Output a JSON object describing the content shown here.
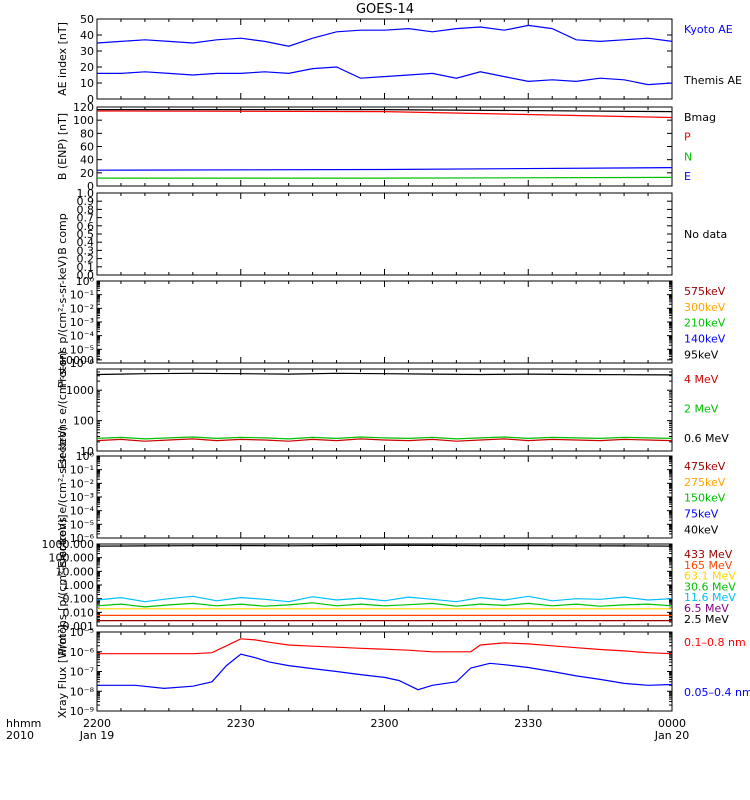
{
  "title": "GOES-14",
  "footer": {
    "corner_top": "hhmm",
    "corner_bottom": "2010",
    "ticks": [
      {
        "t": 0,
        "time": "2200",
        "date": "Jan 19"
      },
      {
        "t": 30,
        "time": "2230",
        "date": ""
      },
      {
        "t": 60,
        "time": "2300",
        "date": ""
      },
      {
        "t": 90,
        "time": "2330",
        "date": ""
      },
      {
        "t": 120,
        "time": "0000",
        "date": "Jan 20"
      }
    ]
  },
  "chart_data": [
    {
      "type": "line",
      "ylabel": "AE index [nT]",
      "ylim": [
        0,
        50
      ],
      "scale": "linear",
      "yticks": [
        "0",
        "10",
        "20",
        "30",
        "40",
        "50"
      ],
      "ytick_values": [
        0,
        10,
        20,
        30,
        40,
        50
      ],
      "series": [
        {
          "name": "Kyoto AE",
          "color": "#0000ff",
          "label_color": "#0000ff",
          "x": [
            0,
            5,
            10,
            15,
            20,
            25,
            30,
            35,
            40,
            45,
            50,
            55,
            60,
            65,
            70,
            75,
            80,
            85,
            90,
            95,
            100,
            105,
            110,
            115,
            120
          ],
          "y": [
            35,
            36,
            37,
            36,
            35,
            37,
            38,
            36,
            33,
            38,
            42,
            43,
            43,
            44,
            42,
            44,
            45,
            43,
            46,
            44,
            37,
            36,
            37,
            38,
            36
          ]
        },
        {
          "name": "Themis AE",
          "color": "#0000ff",
          "label_color": "#000000",
          "x": [
            0,
            5,
            10,
            15,
            20,
            25,
            30,
            35,
            40,
            45,
            50,
            55,
            60,
            65,
            70,
            75,
            80,
            85,
            90,
            95,
            100,
            105,
            110,
            115,
            120
          ],
          "y": [
            16,
            16,
            17,
            16,
            15,
            16,
            16,
            17,
            16,
            19,
            20,
            13,
            14,
            15,
            16,
            13,
            17,
            14,
            11,
            12,
            11,
            13,
            12,
            9,
            10
          ]
        }
      ]
    },
    {
      "type": "line",
      "ylabel": "B (ENP) [nT]",
      "ylim": [
        0,
        120
      ],
      "scale": "linear",
      "yticks": [
        "0",
        "20",
        "40",
        "60",
        "80",
        "100",
        "120"
      ],
      "ytick_values": [
        0,
        20,
        40,
        60,
        80,
        100,
        120
      ],
      "series": [
        {
          "name": "Bmag",
          "color": "#000000",
          "label_color": "#000000",
          "x": [
            0,
            60,
            120
          ],
          "y": [
            116,
            116,
            113
          ]
        },
        {
          "name": "P",
          "color": "#ff0000",
          "label_color": "#ff0000",
          "x": [
            0,
            60,
            120
          ],
          "y": [
            114,
            113,
            104
          ]
        },
        {
          "name": "N",
          "color": "#00c000",
          "label_color": "#00c000",
          "x": [
            0,
            60,
            120
          ],
          "y": [
            12,
            12,
            13
          ]
        },
        {
          "name": "E",
          "color": "#0000ff",
          "label_color": "#0000ff",
          "x": [
            0,
            60,
            120
          ],
          "y": [
            24,
            25,
            28
          ]
        }
      ]
    },
    {
      "type": "line",
      "ylabel": "B comp",
      "ylim": [
        0,
        1
      ],
      "scale": "linear",
      "yticks": [
        "0.0",
        "0.1",
        "0.2",
        "0.3",
        "0.4",
        "0.5",
        "0.6",
        "0.7",
        "0.8",
        "0.9",
        "1.0"
      ],
      "ytick_values": [
        0,
        0.1,
        0.2,
        0.3,
        0.4,
        0.5,
        0.6,
        0.7,
        0.8,
        0.9,
        1.0
      ],
      "series": [],
      "labels": [
        {
          "text": "No data",
          "color": "#000000"
        }
      ]
    },
    {
      "type": "line",
      "ylabel": "Protons p/(cm²-s-sr-keV)",
      "ylim": [
        1e-06,
        1
      ],
      "scale": "log",
      "yticks": [
        "10⁰",
        "10⁻¹",
        "10⁻²",
        "10⁻³",
        "10⁻⁴",
        "10⁻⁵",
        "10⁻⁶"
      ],
      "ytick_values": [
        1,
        0.1,
        0.01,
        0.001,
        0.0001,
        1e-05,
        1e-06
      ],
      "series": [
        {
          "name": "575keV",
          "color": "#990000",
          "label_color": "#990000",
          "x": [],
          "y": []
        },
        {
          "name": "300keV",
          "color": "#ffa500",
          "label_color": "#ffa500",
          "x": [],
          "y": []
        },
        {
          "name": "210keV",
          "color": "#00c000",
          "label_color": "#00c000",
          "x": [],
          "y": []
        },
        {
          "name": "140keV",
          "color": "#0000ff",
          "label_color": "#0000ff",
          "x": [],
          "y": []
        },
        {
          "name": "95keV",
          "color": "#000000",
          "label_color": "#000000",
          "x": [],
          "y": []
        }
      ]
    },
    {
      "type": "line",
      "ylabel": "Electrons e/(cm²-s-sr)",
      "ylim": [
        10,
        5000
      ],
      "scale": "log",
      "yticks": [
        "10",
        "100",
        "1000",
        "10000"
      ],
      "ytick_values": [
        10,
        100,
        1000,
        10000
      ],
      "series": [
        {
          "name": "4 MeV",
          "color": "#cc0000",
          "label_color": "#cc0000",
          "x": [
            0,
            5,
            10,
            15,
            20,
            25,
            30,
            35,
            40,
            45,
            50,
            55,
            60,
            65,
            70,
            75,
            80,
            85,
            90,
            95,
            100,
            105,
            110,
            115,
            120
          ],
          "y": [
            22,
            24,
            21,
            23,
            25,
            22,
            24,
            23,
            21,
            24,
            22,
            25,
            23,
            22,
            24,
            21,
            23,
            25,
            22,
            24,
            23,
            22,
            24,
            23,
            22
          ]
        },
        {
          "name": "2 MeV",
          "color": "#00c000",
          "label_color": "#00c000",
          "x": [
            0,
            5,
            10,
            15,
            20,
            25,
            30,
            35,
            40,
            45,
            50,
            55,
            60,
            65,
            70,
            75,
            80,
            85,
            90,
            95,
            100,
            105,
            110,
            115,
            120
          ],
          "y": [
            26,
            28,
            25,
            27,
            29,
            26,
            28,
            27,
            25,
            28,
            26,
            29,
            27,
            26,
            28,
            25,
            27,
            29,
            26,
            28,
            27,
            26,
            28,
            27,
            26
          ]
        },
        {
          "name": "0.6 MeV",
          "color": "#000000",
          "label_color": "#000000",
          "x": [
            0,
            10,
            20,
            30,
            40,
            50,
            60,
            70,
            80,
            90,
            100,
            110,
            120
          ],
          "y": [
            3300,
            3500,
            3600,
            3500,
            3400,
            3600,
            3500,
            3400,
            3300,
            3400,
            3300,
            3250,
            3200
          ]
        }
      ]
    },
    {
      "type": "line",
      "ylabel": "Electrons e/(cm²-s-sr-keV)",
      "ylim": [
        1e-06,
        1
      ],
      "scale": "log",
      "yticks": [
        "10⁰",
        "10⁻¹",
        "10⁻²",
        "10⁻³",
        "10⁻⁴",
        "10⁻⁵",
        "10⁻⁶"
      ],
      "ytick_values": [
        1,
        0.1,
        0.01,
        0.001,
        0.0001,
        1e-05,
        1e-06
      ],
      "series": [
        {
          "name": "475keV",
          "color": "#990000",
          "label_color": "#990000",
          "x": [],
          "y": []
        },
        {
          "name": "275keV",
          "color": "#ffa500",
          "label_color": "#ffa500",
          "x": [],
          "y": []
        },
        {
          "name": "150keV",
          "color": "#00c000",
          "label_color": "#00c000",
          "x": [],
          "y": []
        },
        {
          "name": "75keV",
          "color": "#0000ff",
          "label_color": "#0000ff",
          "x": [],
          "y": []
        },
        {
          "name": "40keV",
          "color": "#000000",
          "label_color": "#000000",
          "x": [],
          "y": []
        }
      ]
    },
    {
      "type": "line",
      "ylabel": "Protons [p/(cm²-s-sr-keV)]",
      "ylim": [
        0.001,
        1000
      ],
      "scale": "log",
      "yticks": [
        "0.001",
        "0.010",
        "0.100",
        "1.000",
        "10.000",
        "100.000",
        "1000.000"
      ],
      "ytick_values": [
        0.001,
        0.01,
        0.1,
        1,
        10,
        100,
        1000
      ],
      "series": [
        {
          "name": "433 MeV",
          "color": "#990000",
          "label_color": "#990000",
          "x": [
            0,
            60,
            120
          ],
          "y": [
            0.0025,
            0.0025,
            0.0025
          ]
        },
        {
          "name": "165 MeV",
          "color": "#ff4500",
          "label_color": "#ff4500",
          "x": [
            0,
            60,
            120
          ],
          "y": [
            0.006,
            0.006,
            0.006
          ]
        },
        {
          "name": "63.1 MeV",
          "color": "#ffd700",
          "label_color": "#ffd700",
          "x": [
            0,
            60,
            120
          ],
          "y": [
            0.018,
            0.018,
            0.018
          ]
        },
        {
          "name": "30.6 MeV",
          "color": "#00c000",
          "label_color": "#00c000",
          "x": [
            0,
            5,
            10,
            15,
            20,
            25,
            30,
            35,
            40,
            45,
            50,
            55,
            60,
            65,
            70,
            75,
            80,
            85,
            90,
            95,
            100,
            105,
            110,
            115,
            120
          ],
          "y": [
            0.03,
            0.04,
            0.025,
            0.035,
            0.045,
            0.03,
            0.04,
            0.028,
            0.035,
            0.05,
            0.03,
            0.04,
            0.03,
            0.036,
            0.045,
            0.028,
            0.04,
            0.032,
            0.045,
            0.03,
            0.04,
            0.028,
            0.035,
            0.04,
            0.03
          ]
        },
        {
          "name": "11.6 MeV",
          "color": "#00bfff",
          "label_color": "#00bfff",
          "x": [
            0,
            5,
            10,
            15,
            20,
            25,
            30,
            35,
            40,
            45,
            50,
            55,
            60,
            65,
            70,
            75,
            80,
            85,
            90,
            95,
            100,
            105,
            110,
            115,
            120
          ],
          "y": [
            0.08,
            0.12,
            0.06,
            0.1,
            0.15,
            0.07,
            0.12,
            0.09,
            0.06,
            0.14,
            0.08,
            0.11,
            0.07,
            0.13,
            0.09,
            0.06,
            0.12,
            0.08,
            0.15,
            0.07,
            0.1,
            0.09,
            0.13,
            0.08,
            0.1
          ]
        },
        {
          "name": "6.5 MeV",
          "color": "#800080",
          "label_color": "#800080",
          "x": [],
          "y": []
        },
        {
          "name": "2.5 MeV",
          "color": "#000000",
          "label_color": "#000000",
          "x": [
            0,
            10,
            20,
            30,
            40,
            50,
            60,
            70,
            80,
            90,
            100,
            110,
            120
          ],
          "y": [
            700,
            720,
            750,
            760,
            740,
            780,
            800,
            790,
            770,
            760,
            740,
            720,
            700
          ]
        }
      ]
    },
    {
      "type": "line",
      "ylabel": "Xray Flux [W/m²]",
      "ylim": [
        1e-09,
        1e-05
      ],
      "scale": "log",
      "yticks": [
        "10⁻⁵",
        "10⁻⁶",
        "10⁻⁷",
        "10⁻⁸",
        "10⁻⁹"
      ],
      "ytick_values": [
        1e-05,
        1e-06,
        1e-07,
        1e-08,
        1e-09
      ],
      "series": [
        {
          "name": "0.1–0.8 nm",
          "color": "#ff0000",
          "label_color": "#ff0000",
          "x": [
            0,
            8,
            16,
            20,
            24,
            27,
            30,
            33,
            36,
            40,
            45,
            50,
            55,
            60,
            65,
            70,
            75,
            78,
            80,
            85,
            90,
            95,
            100,
            105,
            110,
            115,
            120
          ],
          "y": [
            8e-07,
            8e-07,
            8e-07,
            8e-07,
            9e-07,
            2e-06,
            4.5e-06,
            4e-06,
            3e-06,
            2.2e-06,
            1.9e-06,
            1.7e-06,
            1.5e-06,
            1.35e-06,
            1.2e-06,
            1e-06,
            1e-06,
            1e-06,
            2.2e-06,
            2.8e-06,
            2.5e-06,
            2e-06,
            1.6e-06,
            1.3e-06,
            1.1e-06,
            9e-07,
            8e-07
          ]
        },
        {
          "name": "0.05–0.4 nm",
          "color": "#0000ff",
          "label_color": "#0000ff",
          "x": [
            0,
            8,
            14,
            20,
            24,
            27,
            30,
            33,
            36,
            40,
            45,
            50,
            55,
            60,
            63,
            67,
            70,
            75,
            78,
            82,
            85,
            90,
            95,
            100,
            105,
            110,
            115,
            120
          ],
          "y": [
            2e-08,
            2e-08,
            1.4e-08,
            1.8e-08,
            3e-08,
            2e-07,
            7.5e-07,
            5e-07,
            3e-07,
            2e-07,
            1.4e-07,
            1e-07,
            7e-08,
            5e-08,
            3.5e-08,
            1.2e-08,
            2e-08,
            3e-08,
            1.5e-07,
            2.6e-07,
            2.2e-07,
            1.6e-07,
            1e-07,
            6e-08,
            4e-08,
            2.5e-08,
            2e-08,
            2.2e-08
          ]
        }
      ]
    }
  ]
}
